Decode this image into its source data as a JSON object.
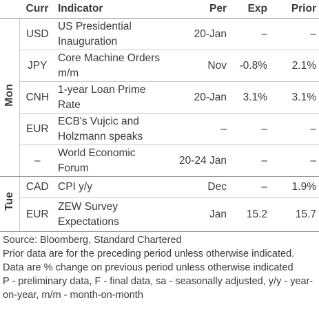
{
  "table": {
    "columns": [
      "Curr",
      "Indicator",
      "Per",
      "Exp",
      "Prior"
    ],
    "groups": [
      {
        "day": "Mon",
        "rows": [
          [
            "USD",
            "US Presidential Inauguration",
            "20-Jan",
            "–",
            "–"
          ],
          [
            "JPY",
            "Core Machine Orders m/m",
            "Nov",
            "-0.8%",
            "2.1%"
          ],
          [
            "CNH",
            "1-year Loan Prime Rate",
            "20-Jan",
            "3.1%",
            "3.1%"
          ],
          [
            "EUR",
            "ECB's Vujcic and Holzmann speaks",
            "–",
            "–",
            "–"
          ],
          [
            "–",
            "World Economic Forum",
            "20-24 Jan",
            "–",
            "–"
          ]
        ]
      },
      {
        "day": "Tue",
        "rows": [
          [
            "CAD",
            "CPI y/y",
            "Dec",
            "–",
            "1.9%"
          ],
          [
            "EUR",
            "ZEW Survey Expectations",
            "Jan",
            "15.2",
            "15.7"
          ]
        ]
      }
    ]
  },
  "footnotes": [
    "Source: Bloomberg, Standard Chartered",
    "Prior data are for the preceding period unless otherwise indicated. Data are % change on previous period unless otherwise indicated",
    "P - preliminary data, F - final data, sa - seasonally adjusted, y/y - year-on-year, m/m - month-on-month"
  ]
}
